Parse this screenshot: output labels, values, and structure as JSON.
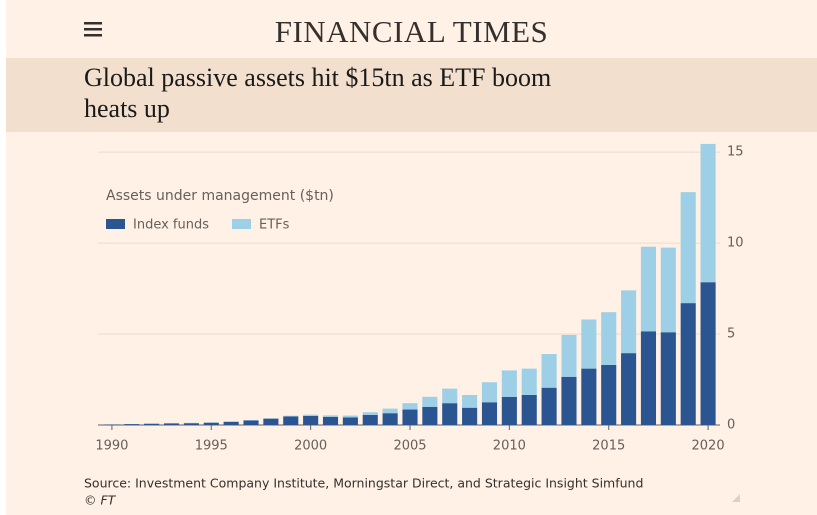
{
  "brand": "FINANCIAL TIMES",
  "chart_data": {
    "type": "stacked-bar",
    "title": "Global passive assets hit $15tn as ETF boom heats up",
    "y_label": "Assets under management ($tn)",
    "x": [
      1990,
      1991,
      1992,
      1993,
      1994,
      1995,
      1996,
      1997,
      1998,
      1999,
      2000,
      2001,
      2002,
      2003,
      2004,
      2005,
      2006,
      2007,
      2008,
      2009,
      2010,
      2011,
      2012,
      2013,
      2014,
      2015,
      2016,
      2017,
      2018,
      2019,
      2020
    ],
    "series": [
      {
        "name": "Index funds",
        "color": "#2a5591",
        "values": [
          0.03,
          0.05,
          0.07,
          0.09,
          0.1,
          0.13,
          0.18,
          0.25,
          0.35,
          0.47,
          0.5,
          0.45,
          0.42,
          0.55,
          0.65,
          0.85,
          1.0,
          1.2,
          0.95,
          1.25,
          1.55,
          1.65,
          2.05,
          2.65,
          3.1,
          3.3,
          3.95,
          5.15,
          5.1,
          6.7,
          7.85
        ]
      },
      {
        "name": "ETFs",
        "color": "#9dd0e6",
        "values": [
          0,
          0,
          0,
          0.01,
          0.02,
          0.01,
          0.01,
          0.02,
          0.02,
          0.04,
          0.07,
          0.08,
          0.1,
          0.15,
          0.25,
          0.35,
          0.55,
          0.8,
          0.7,
          1.1,
          1.45,
          1.45,
          1.85,
          2.3,
          2.7,
          2.9,
          3.45,
          4.65,
          4.65,
          6.1,
          7.6
        ]
      }
    ],
    "xlim": [
      1989.3,
      2020.6
    ],
    "xticks": [
      1990,
      1995,
      2000,
      2005,
      2010,
      2015,
      2020
    ],
    "ylim": [
      0,
      15.5
    ],
    "yticks": [
      0,
      5,
      10,
      15
    ],
    "grid": true,
    "source": "Source: Investment Company Institute, Morningstar Direct, and Strategic Insight Simfund",
    "credit": "© FT"
  }
}
